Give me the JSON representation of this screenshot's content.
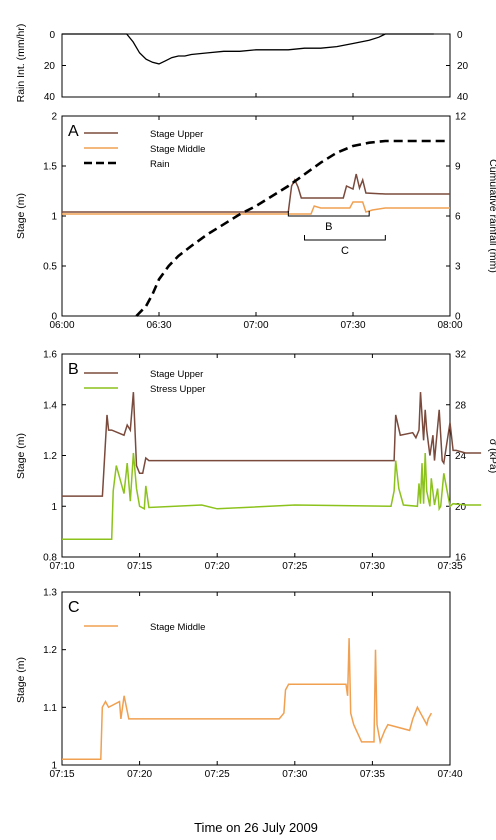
{
  "figure": {
    "x_title": "Time on 26 July 2009"
  },
  "colors": {
    "stage_upper": "#7a4a3c",
    "stage_middle": "#f0a050",
    "stress_upper": "#8cc21c",
    "rain": "#000000",
    "rain_intensity": "#000000"
  },
  "chart_data": [
    {
      "id": "rain_intensity",
      "type": "line",
      "title": "",
      "ylabel": "Rain Int. (mm/hr)",
      "ylim": [
        40,
        0
      ],
      "y_inverted": true,
      "yticks": [
        "0",
        "20",
        "40"
      ],
      "y2ticks": [
        "0",
        "20",
        "40"
      ],
      "x_range": [
        "06:00",
        "08:00"
      ],
      "series": [
        {
          "key": "rain_intensity",
          "x": [
            "06:00",
            "06:20",
            "06:22",
            "06:24",
            "06:26",
            "06:28",
            "06:30",
            "06:32",
            "06:34",
            "06:36",
            "06:38",
            "06:40",
            "06:45",
            "06:50",
            "06:55",
            "07:00",
            "07:05",
            "07:10",
            "07:15",
            "07:20",
            "07:25",
            "07:30",
            "07:35",
            "07:38",
            "07:40",
            "07:45",
            "07:50",
            "07:55"
          ],
          "y": [
            0,
            0,
            5,
            12,
            16,
            18,
            19,
            17,
            15,
            14,
            14,
            13,
            12,
            11,
            11,
            10,
            10,
            10,
            9,
            9,
            8,
            6,
            4,
            2,
            0,
            0,
            0,
            0
          ]
        }
      ]
    },
    {
      "id": "A",
      "type": "line",
      "panel_label": "A",
      "ylabel": "Stage (m)",
      "y2label": "Cumulative rainfall (mm)",
      "ylim": [
        0,
        2
      ],
      "y2lim": [
        0,
        12
      ],
      "yticks": [
        "0",
        "0.5",
        "1",
        "1.5",
        "2"
      ],
      "y2ticks": [
        "0",
        "3",
        "6",
        "9",
        "12"
      ],
      "xticks": [
        "06:00",
        "06:30",
        "07:00",
        "07:30",
        "08:00"
      ],
      "x_range": [
        "06:00",
        "08:00"
      ],
      "series": [
        {
          "name": "Stage Upper",
          "key": "stage_upper",
          "x": [
            "06:00",
            "07:10",
            "07:11",
            "07:12",
            "07:13",
            "07:14",
            "07:15",
            "07:20",
            "07:27",
            "07:28",
            "07:30",
            "07:31",
            "07:32",
            "07:33",
            "07:34",
            "07:40",
            "08:00"
          ],
          "y": [
            1.04,
            1.04,
            1.3,
            1.36,
            1.29,
            1.18,
            1.18,
            1.18,
            1.18,
            1.3,
            1.27,
            1.42,
            1.28,
            1.36,
            1.23,
            1.22,
            1.22
          ]
        },
        {
          "name": "Stage Middle",
          "key": "stage_middle",
          "x": [
            "06:00",
            "07:17",
            "07:18",
            "07:20",
            "07:29",
            "07:30",
            "07:33",
            "07:34",
            "07:36",
            "07:40",
            "08:00"
          ],
          "y": [
            1.02,
            1.02,
            1.1,
            1.08,
            1.08,
            1.14,
            1.14,
            1.04,
            1.06,
            1.08,
            1.08
          ]
        },
        {
          "name": "Rain",
          "key": "rain",
          "axis": "y2",
          "dashed": true,
          "x": [
            "06:23",
            "06:26",
            "06:28",
            "06:30",
            "06:33",
            "06:36",
            "06:40",
            "06:45",
            "06:50",
            "06:55",
            "07:00",
            "07:05",
            "07:10",
            "07:15",
            "07:20",
            "07:25",
            "07:30",
            "07:35",
            "07:40",
            "07:50",
            "08:00"
          ],
          "y": [
            0,
            0.6,
            1.3,
            2.2,
            3.0,
            3.6,
            4.2,
            4.9,
            5.5,
            6.1,
            6.6,
            7.2,
            7.8,
            8.5,
            9.2,
            9.8,
            10.2,
            10.4,
            10.5,
            10.5,
            10.5
          ]
        }
      ],
      "annotations": [
        {
          "label": "B",
          "x_start": "07:10",
          "x_end": "07:35"
        },
        {
          "label": "C",
          "x_start": "07:15",
          "x_end": "07:40"
        }
      ],
      "legend": "top-left"
    },
    {
      "id": "B",
      "type": "line",
      "panel_label": "B",
      "ylabel": "Stage (m)",
      "y2label": "σ (kPa)",
      "ylim": [
        0.8,
        1.6
      ],
      "y2lim": [
        16,
        32
      ],
      "yticks": [
        "0.8",
        "1",
        "1.2",
        "1.4",
        "1.6"
      ],
      "y2ticks": [
        "16",
        "20",
        "24",
        "28",
        "32"
      ],
      "xticks": [
        "07:10",
        "07:15",
        "07:20",
        "07:25",
        "07:30",
        "07:35"
      ],
      "x_range": [
        "07:10",
        "07:35"
      ],
      "series": [
        {
          "name": "Stage Upper",
          "key": "stage_upper",
          "x": [
            7.1667,
            7.21,
            7.215,
            7.2167,
            7.22,
            7.2333,
            7.2367,
            7.24,
            7.2433,
            7.2467,
            7.25,
            7.2533,
            7.2567,
            7.26,
            7.2633,
            7.5,
            7.5233,
            7.525,
            7.53,
            7.5433,
            7.5467,
            7.55,
            7.5517,
            7.555,
            7.5567,
            7.5583,
            7.5617,
            7.565,
            7.5667,
            7.5717,
            7.575,
            7.5767,
            7.5833,
            7.5867,
            7.59,
            7.6,
            7.6167
          ],
          "y": [
            1.04,
            1.04,
            1.36,
            1.3,
            1.3,
            1.28,
            1.32,
            1.3,
            1.45,
            1.16,
            1.13,
            1.13,
            1.19,
            1.18,
            1.18,
            1.18,
            1.18,
            1.36,
            1.28,
            1.29,
            1.27,
            1.3,
            1.45,
            1.26,
            1.38,
            1.3,
            1.2,
            1.28,
            1.18,
            1.38,
            1.18,
            1.17,
            1.33,
            1.22,
            1.22,
            1.21,
            1.21
          ]
        },
        {
          "name": "Stress Upper",
          "key": "stress_upper",
          "axis": "y2",
          "x": [
            7.1667,
            7.22,
            7.2217,
            7.225,
            7.2333,
            7.2367,
            7.24,
            7.2433,
            7.2467,
            7.25,
            7.255,
            7.2567,
            7.26,
            7.3167,
            7.3333,
            7.4167,
            7.52,
            7.5233,
            7.525,
            7.5283,
            7.5333,
            7.5483,
            7.55,
            7.5517,
            7.5533,
            7.555,
            7.5567,
            7.5583,
            7.5617,
            7.5633,
            7.5667,
            7.57,
            7.5717,
            7.5733,
            7.5767,
            7.5833,
            7.5867,
            7.6,
            7.6167
          ],
          "y": [
            17.4,
            17.4,
            21.2,
            23.2,
            21.0,
            23.4,
            20.4,
            24.2,
            21.4,
            20.0,
            19.8,
            21.6,
            19.9,
            20.1,
            19.8,
            20.1,
            20.0,
            21.2,
            23.6,
            21.4,
            20.1,
            20.0,
            21.8,
            20.2,
            23.4,
            20.2,
            24.2,
            21.2,
            20.0,
            22.2,
            20.1,
            21.4,
            19.8,
            20.0,
            22.6,
            20.0,
            20.2,
            20.1,
            20.1
          ]
        }
      ],
      "legend": "top-left"
    },
    {
      "id": "C",
      "type": "line",
      "panel_label": "C",
      "ylabel": "Stage (m)",
      "ylim": [
        1.0,
        1.3
      ],
      "yticks": [
        "1",
        "1.1",
        "1.2",
        "1.3"
      ],
      "xticks": [
        "07:15",
        "07:20",
        "07:25",
        "07:30",
        "07:35",
        "07:40"
      ],
      "x_range": [
        "07:15",
        "07:40"
      ],
      "series": [
        {
          "name": "Stage Middle",
          "key": "stage_middle",
          "x": [
            7.25,
            7.2917,
            7.2933,
            7.2967,
            7.3,
            7.3117,
            7.3133,
            7.3167,
            7.3217,
            7.3333,
            7.4167,
            7.4833,
            7.4883,
            7.49,
            7.4933,
            7.5,
            7.5333,
            7.555,
            7.5567,
            7.5583,
            7.56,
            7.5633,
            7.5717,
            7.585,
            7.5867,
            7.5883,
            7.5917,
            7.5967,
            7.6,
            7.6233,
            7.6267,
            7.6317,
            7.6417,
            7.6433,
            7.6467
          ],
          "y": [
            1.01,
            1.01,
            1.1,
            1.11,
            1.1,
            1.11,
            1.08,
            1.12,
            1.08,
            1.08,
            1.08,
            1.08,
            1.09,
            1.13,
            1.14,
            1.14,
            1.14,
            1.14,
            1.12,
            1.22,
            1.09,
            1.07,
            1.04,
            1.04,
            1.2,
            1.07,
            1.04,
            1.06,
            1.07,
            1.06,
            1.08,
            1.1,
            1.07,
            1.08,
            1.09
          ]
        }
      ],
      "legend": "top-left"
    }
  ]
}
